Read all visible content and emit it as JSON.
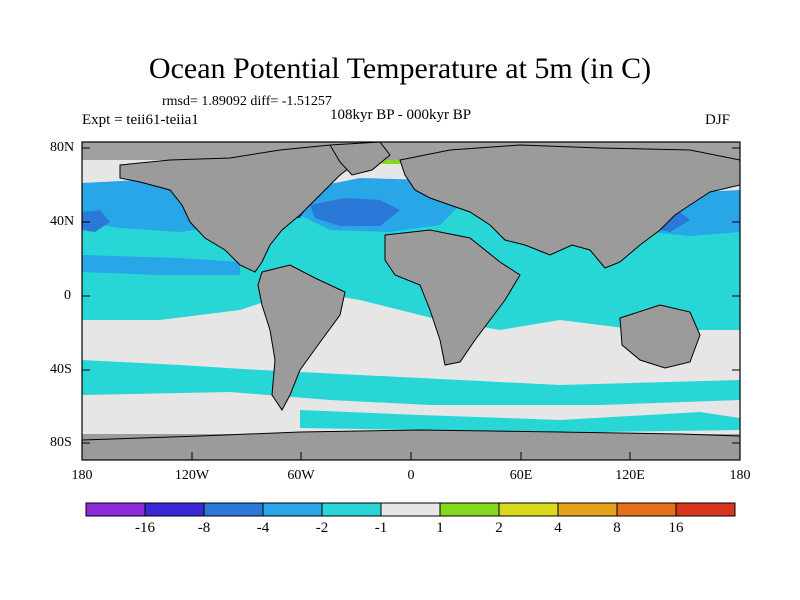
{
  "figure": {
    "title": "Ocean Potential Temperature at 5m (in C)",
    "stats": "rmsd= 1.89092 diff= -1.51257",
    "experiment": "Expt = teii61-teiia1",
    "period": "108kyr BP - 000kyr BP",
    "season": "DJF"
  },
  "axes": {
    "lat_labels": [
      "80N",
      "40N",
      "0",
      "40S",
      "80S"
    ],
    "lon_labels": [
      "180",
      "120W",
      "60W",
      "0",
      "60E",
      "120E",
      "180"
    ]
  },
  "colors": {
    "land": "#9b9b9b",
    "missing": "#a0a0a0",
    "levels": [
      "#8b2bd8",
      "#3a28d8",
      "#2a78d8",
      "#28a6e8",
      "#28d6d6",
      "#e6e6e6",
      "#86d81c",
      "#d8d81c",
      "#e6a21c",
      "#e6701c",
      "#d8361c"
    ]
  },
  "colorbar": {
    "labels": [
      "-16",
      "-8",
      "-4",
      "-2",
      "-1",
      "1",
      "2",
      "4",
      "8",
      "16"
    ]
  }
}
